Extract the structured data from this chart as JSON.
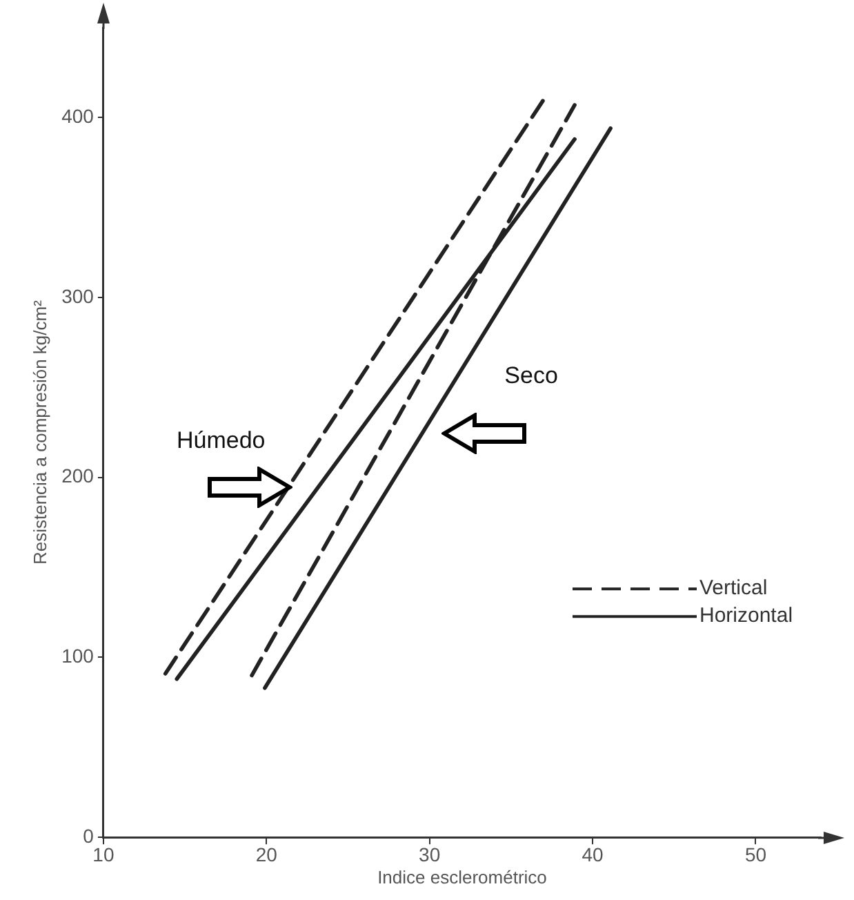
{
  "chart_data": {
    "type": "line",
    "xlabel": "Indice esclerométrico",
    "ylabel": "Resistencia a compresión kg/cm²",
    "xlim": [
      10,
      54
    ],
    "xticks": [
      10,
      20,
      30,
      40,
      50
    ],
    "ylim": [
      0,
      450
    ],
    "yticks": [
      0,
      100,
      200,
      300,
      400
    ],
    "grid": false,
    "legend": "right",
    "marker": "none",
    "series": [
      {
        "name": "Vertical",
        "color": "#222222",
        "line_style": "dashed",
        "x": [
          13.8,
          37.0
        ],
        "values": [
          91,
          410
        ]
      },
      {
        "name": "Horizontal",
        "color": "#222222",
        "line_style": "solid",
        "x": [
          14.5,
          38.9
        ],
        "values": [
          88,
          388
        ]
      },
      {
        "color": "#222222",
        "line_style": "dashed",
        "x": [
          19.1,
          38.9
        ],
        "values": [
          90,
          407
        ]
      },
      {
        "color": "#222222",
        "line_style": "solid",
        "x": [
          19.9,
          41.1
        ],
        "values": [
          83,
          394
        ]
      }
    ],
    "annotations": [
      "Húmedo",
      "Seco"
    ]
  }
}
